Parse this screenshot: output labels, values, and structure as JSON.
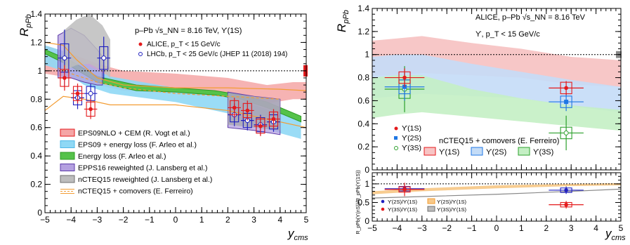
{
  "chart_data": [
    {
      "type": "scatter",
      "xlabel": "y",
      "xlabel_sub": "cms",
      "ylabel": "R",
      "ylabel_sub": "pPb",
      "xlim": [
        -5,
        5
      ],
      "ylim": [
        0,
        1.4
      ],
      "xticks": [
        "−5",
        "−4",
        "−3",
        "−2",
        "−1",
        "0",
        "1",
        "2",
        "3",
        "4",
        "5"
      ],
      "yticks": [
        "0",
        "0.2",
        "0.4",
        "0.6",
        "0.8",
        "1",
        "1.2",
        "1.4"
      ],
      "header": "p–Pb √s_NN = 8.16 TeV, ϒ(1S)",
      "legend_markers": [
        {
          "label": "ALICE, p_T < 15 GeV/c",
          "color": "#e41a1c",
          "marker": "filled-circle"
        },
        {
          "label": "LHCb, p_T < 25 GeV/c (JHEP 11 (2018) 194)",
          "color": "#1f1fbf",
          "marker": "open-circle"
        }
      ],
      "legend_models": [
        {
          "label": "EPS09NLO + CEM (R. Vogt et al.)",
          "fill": "#f5a6a6",
          "edge": "#e41a1c"
        },
        {
          "label": "EPS09 + energy loss (F. Arleo et al.)",
          "fill": "#8fd8f5",
          "edge": "#4fb8e8"
        },
        {
          "label": "Energy loss (F. Arleo et al.)",
          "fill": "#55c24a",
          "edge": "#2c9a22"
        },
        {
          "label": "EPPS16 reweighted (J. Lansberg et al.)",
          "fill": "#b4a0e0",
          "edge": "#5b3aa8"
        },
        {
          "label": "nCTEQ15 reweighted (J. Lansberg et al.)",
          "fill": "#bdbdbd",
          "edge": "#707070"
        },
        {
          "label": "nCTEQ15 + comovers (E. Ferreiro)",
          "fill": "none",
          "edge": "#f39c32"
        }
      ],
      "alice_points": [
        {
          "x": -4.25,
          "y": 0.95,
          "xerr": 0.25,
          "yerr": 0.09,
          "syst": 0.06
        },
        {
          "x": -3.75,
          "y": 0.84,
          "xerr": 0.25,
          "yerr": 0.07,
          "syst": 0.05
        },
        {
          "x": -3.25,
          "y": 0.73,
          "xerr": 0.25,
          "yerr": 0.07,
          "syst": 0.05
        },
        {
          "x": 2.25,
          "y": 0.74,
          "xerr": 0.25,
          "yerr": 0.07,
          "syst": 0.05
        },
        {
          "x": 2.75,
          "y": 0.72,
          "xerr": 0.25,
          "yerr": 0.07,
          "syst": 0.05
        },
        {
          "x": 3.25,
          "y": 0.61,
          "xerr": 0.25,
          "yerr": 0.07,
          "syst": 0.05
        },
        {
          "x": 3.75,
          "y": 0.66,
          "xerr": 0.25,
          "yerr": 0.07,
          "syst": 0.05
        }
      ],
      "lhcb_points": [
        {
          "x": -4.25,
          "y": 1.09,
          "xerr": 0.25,
          "yerr": 0.2,
          "syst": 0.1
        },
        {
          "x": -3.75,
          "y": 0.81,
          "xerr": 0.25,
          "yerr": 0.08,
          "syst": 0.05
        },
        {
          "x": -3.25,
          "y": 0.84,
          "xerr": 0.25,
          "yerr": 0.07,
          "syst": 0.05
        },
        {
          "x": -2.75,
          "y": 1.09,
          "xerr": 0.25,
          "yerr": 0.15,
          "syst": 0.08
        },
        {
          "x": 2.25,
          "y": 0.69,
          "xerr": 0.25,
          "yerr": 0.08,
          "syst": 0.05
        },
        {
          "x": 2.75,
          "y": 0.65,
          "xerr": 0.25,
          "yerr": 0.07,
          "syst": 0.05
        },
        {
          "x": 3.25,
          "y": 0.62,
          "xerr": 0.25,
          "yerr": 0.07,
          "syst": 0.05
        },
        {
          "x": 3.75,
          "y": 0.64,
          "xerr": 0.25,
          "yerr": 0.07,
          "syst": 0.05
        }
      ]
    },
    {
      "type": "scatter",
      "xlabel": "y",
      "xlabel_sub": "cms",
      "ylabel": "R",
      "ylabel_sub": "pPb",
      "xlim": [
        -5,
        5
      ],
      "ylim": [
        0,
        1.4
      ],
      "xticks": [
        "−5",
        "−4",
        "−3",
        "−2",
        "−1",
        "0",
        "1",
        "2",
        "3",
        "4",
        "5"
      ],
      "yticks": [
        "0",
        "0.2",
        "0.4",
        "0.6",
        "0.8",
        "1",
        "1.2",
        "1.4"
      ],
      "header_line1": "ALICE, p–Pb √s_NN = 8.16 TeV",
      "header_line2": "ϒ, p_T < 15 GeV/c",
      "legend_markers": [
        {
          "label": "ϒ(1S)",
          "color": "#e41a1c",
          "marker": "filled-circle"
        },
        {
          "label": "ϒ(2S)",
          "color": "#1f77e4",
          "marker": "filled-square"
        },
        {
          "label": "ϒ(3S)",
          "color": "#2ca02c",
          "marker": "open-circle"
        }
      ],
      "model_title": "nCTEQ15 + comovers (E. Ferreiro)",
      "model_legend": [
        {
          "label": "ϒ(1S)",
          "fill": "#f7c4c4",
          "edge": "#e41a1c"
        },
        {
          "label": "ϒ(2S)",
          "fill": "#c4dcf7",
          "edge": "#1f77e4"
        },
        {
          "label": "ϒ(3S)",
          "fill": "#c4efc4",
          "edge": "#2ca02c"
        }
      ],
      "points": [
        {
          "state": "1S",
          "x": -3.7,
          "y": 0.8,
          "xerr": 0.8,
          "yerr": 0.08,
          "syst": 0.05
        },
        {
          "state": "1S",
          "x": 2.8,
          "y": 0.71,
          "xerr": 0.7,
          "yerr": 0.06,
          "syst": 0.05
        },
        {
          "state": "2S",
          "x": -3.7,
          "y": 0.72,
          "xerr": 0.8,
          "yerr": 0.12,
          "syst": 0.06
        },
        {
          "state": "2S",
          "x": 2.8,
          "y": 0.59,
          "xerr": 0.7,
          "yerr": 0.08,
          "syst": 0.05
        },
        {
          "state": "3S",
          "x": -3.7,
          "y": 0.7,
          "xerr": 0.8,
          "yerr": 0.2,
          "syst": 0.08
        },
        {
          "state": "3S",
          "x": 2.8,
          "y": 0.32,
          "xerr": 0.7,
          "yerr": 0.15,
          "syst": 0.05
        }
      ],
      "global_syst": 1.0
    },
    {
      "type": "scatter",
      "ylabel": "R_pPb(ϒ(nS))/R_pPb(ϒ(1S))",
      "xlabel": "y",
      "xlabel_sub": "cms",
      "xlim": [
        -5,
        5
      ],
      "ylim": [
        0,
        1.3
      ],
      "yticks": [
        "0",
        "0.5",
        "1"
      ],
      "legend": [
        {
          "label": "ϒ(2S)/ϒ(1S)",
          "color": "#1f1fbf",
          "marker": "filled-circle"
        },
        {
          "label": "ϒ(3S)/ϒ(1S)",
          "color": "#e41a1c",
          "marker": "filled-circle"
        },
        {
          "label": "ϒ(2S)/ϒ(1S)",
          "fill": "#f7c98a",
          "edge": "#f39c32"
        },
        {
          "label": "ϒ(3S)/ϒ(1S)",
          "fill": "#bdbdbd",
          "edge": "#707070"
        }
      ],
      "points": [
        {
          "ratio": "2S/1S",
          "x": -3.7,
          "y": 0.87,
          "xerr": 0.8,
          "yerr": 0.1,
          "syst": 0.06
        },
        {
          "ratio": "3S/1S",
          "x": -3.7,
          "y": 0.85,
          "xerr": 0.8,
          "yerr": 0.18,
          "syst": 0.07
        },
        {
          "ratio": "2S/1S",
          "x": 2.8,
          "y": 0.83,
          "xerr": 0.7,
          "yerr": 0.1,
          "syst": 0.06
        },
        {
          "ratio": "3S/1S",
          "x": 2.8,
          "y": 0.44,
          "xerr": 0.7,
          "yerr": 0.1,
          "syst": 0.06
        }
      ]
    }
  ]
}
